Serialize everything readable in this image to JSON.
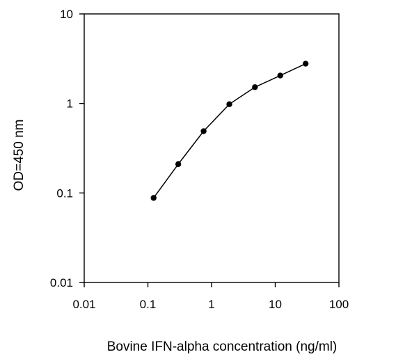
{
  "chart_data": {
    "type": "line",
    "title": "",
    "xlabel": "Bovine IFN-alpha concentration (ng/ml)",
    "ylabel": "OD=450 nm",
    "x_scale": "log",
    "y_scale": "log",
    "xlim": [
      0.01,
      100
    ],
    "ylim": [
      0.01,
      10
    ],
    "x_ticks": [
      "0.01",
      "0.1",
      "1",
      "10",
      "100"
    ],
    "y_ticks": [
      "0.01",
      "0.1",
      "1",
      "10"
    ],
    "grid": false,
    "legend": "none",
    "marker": "circle",
    "line_color": "#000000",
    "series": [
      {
        "x": [
          0.123,
          0.3,
          0.75,
          1.9,
          4.8,
          12,
          30
        ],
        "y": [
          0.088,
          0.21,
          0.49,
          0.98,
          1.52,
          2.05,
          2.78
        ]
      }
    ]
  }
}
